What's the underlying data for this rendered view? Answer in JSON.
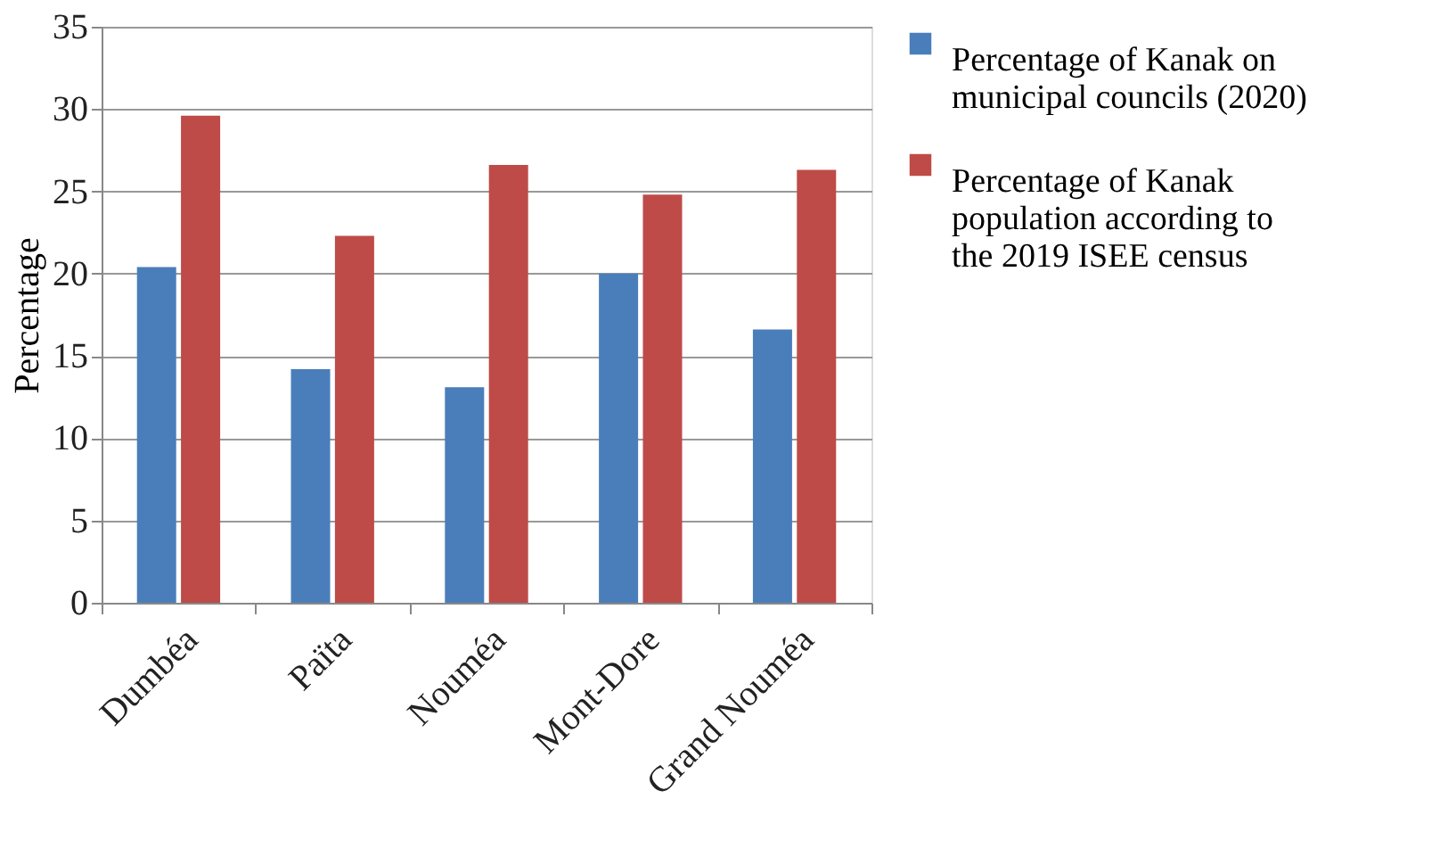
{
  "chart_data": {
    "type": "bar",
    "ylabel": "Percentage",
    "categories": [
      "Dumbéa",
      "Païta",
      "Nouméa",
      "Mont-Dore",
      "Grand Nouméa"
    ],
    "series": [
      {
        "name": "Percentage of Kanak on municipal councils (2020)",
        "color": "#4a7ebb",
        "values": [
          20.4,
          14.2,
          13.1,
          20.0,
          16.6
        ]
      },
      {
        "name": "Percentage of Kanak population according to the 2019 ISEE census",
        "color": "#be4b48",
        "values": [
          29.6,
          22.3,
          26.6,
          24.8,
          26.3
        ]
      }
    ],
    "ylim": [
      0,
      35
    ],
    "yticks": [
      0,
      5,
      10,
      15,
      20,
      25,
      30,
      35
    ],
    "grid": "y",
    "legend": "right"
  }
}
